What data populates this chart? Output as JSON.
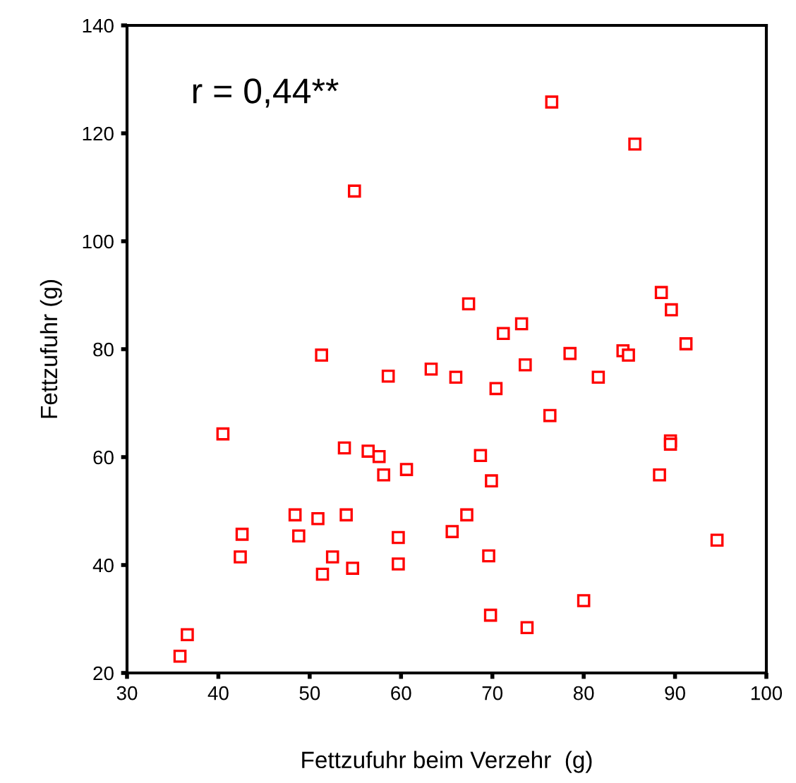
{
  "chart_data": {
    "type": "scatter",
    "xlabel": "Fettzufuhr beim Verzehr  (g)",
    "ylabel": "Fettzufuhr (g)",
    "annotations": [
      "r = 0,44**"
    ],
    "marker": "square",
    "grid": false,
    "legend": false,
    "xlim": [
      30,
      100
    ],
    "xticks": [
      30,
      40,
      50,
      60,
      70,
      80,
      90,
      100
    ],
    "ylim": [
      20,
      140
    ],
    "yticks": [
      20,
      40,
      60,
      80,
      100,
      120,
      140
    ],
    "series": [
      {
        "color": "#ff0000",
        "x": [
          76.5,
          85.6,
          54.9,
          67.4,
          88.5,
          89.6,
          91.2,
          73.2,
          71.2,
          84.3,
          84.9,
          78.5,
          51.3,
          63.3,
          73.6,
          58.6,
          66.0,
          81.6,
          70.4,
          76.3,
          40.5,
          89.5,
          89.5,
          53.8,
          56.4,
          57.6,
          68.7,
          60.6,
          58.1,
          88.3,
          69.9,
          48.4,
          54.0,
          50.9,
          67.2,
          42.6,
          48.8,
          59.7,
          65.6,
          94.6,
          42.4,
          52.5,
          69.6,
          59.7,
          54.7,
          51.4,
          80.0,
          69.8,
          73.8,
          36.6,
          35.8
        ],
        "values": [
          125.8,
          118.0,
          109.3,
          88.4,
          90.5,
          87.3,
          81.0,
          84.7,
          82.9,
          79.7,
          78.9,
          79.2,
          78.9,
          76.3,
          77.1,
          75.0,
          74.8,
          74.8,
          72.7,
          67.7,
          64.3,
          63.0,
          62.4,
          61.7,
          61.1,
          60.1,
          60.3,
          57.7,
          56.7,
          56.7,
          55.6,
          49.3,
          49.3,
          48.6,
          49.3,
          45.7,
          45.4,
          45.1,
          46.2,
          44.6,
          41.5,
          41.5,
          41.7,
          40.2,
          39.4,
          38.3,
          33.4,
          30.7,
          28.4,
          27.1,
          23.1
        ]
      }
    ]
  }
}
